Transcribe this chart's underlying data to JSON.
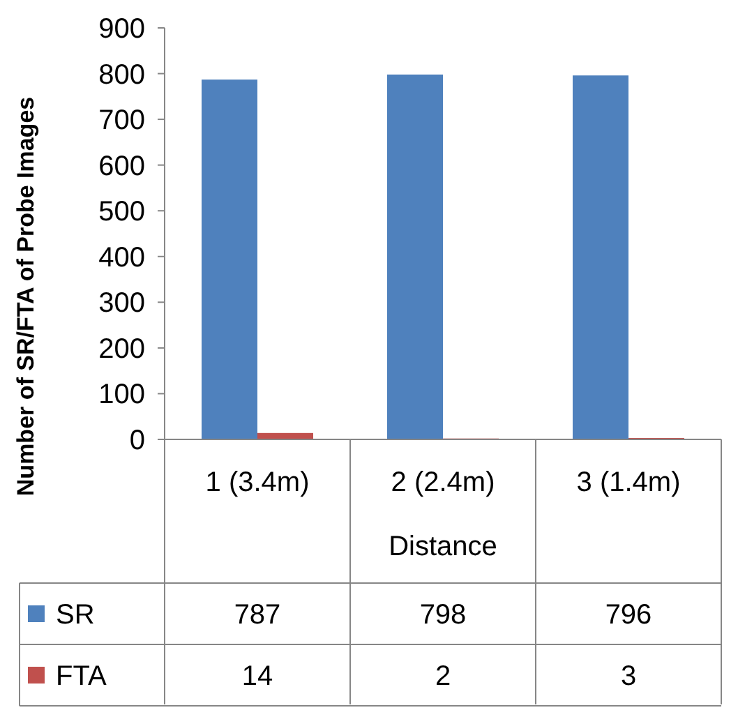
{
  "chart_data": {
    "type": "bar",
    "ylabel": "Number of SR/FTA of Probe Images",
    "xlabel": "Distance",
    "categories": [
      "1 (3.4m)",
      "2 (2.4m)",
      "3 (1.4m)"
    ],
    "series": [
      {
        "name": "SR",
        "color": "#4f81bd",
        "values": [
          787,
          798,
          796
        ]
      },
      {
        "name": "FTA",
        "color": "#c0504d",
        "values": [
          14,
          2,
          3
        ]
      }
    ],
    "ylim": [
      0,
      900
    ],
    "yticks": [
      0,
      100,
      200,
      300,
      400,
      500,
      600,
      700,
      800,
      900
    ],
    "data_labels": true,
    "legend": "bottom"
  }
}
